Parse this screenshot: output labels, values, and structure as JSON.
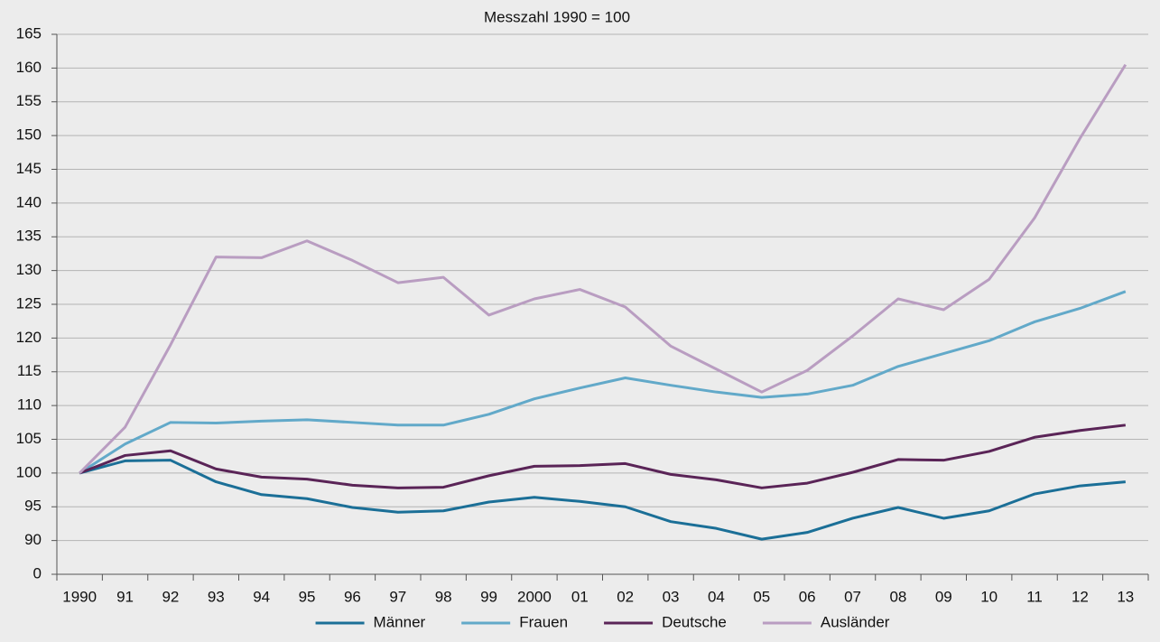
{
  "chart_data": {
    "type": "line",
    "title": "Messzahl 1990 = 100",
    "categories": [
      "1990",
      "91",
      "92",
      "93",
      "94",
      "95",
      "96",
      "97",
      "98",
      "99",
      "2000",
      "01",
      "02",
      "03",
      "04",
      "05",
      "06",
      "07",
      "08",
      "09",
      "10",
      "11",
      "12",
      "13"
    ],
    "series": [
      {
        "name": "Männer",
        "color": "#1b6f97",
        "values": [
          100,
          101.8,
          101.9,
          98.7,
          96.8,
          96.2,
          94.9,
          94.2,
          94.4,
          95.7,
          96.4,
          95.8,
          95.0,
          92.8,
          91.8,
          90.2,
          91.2,
          93.3,
          94.9,
          93.3,
          94.4,
          96.9,
          98.1,
          98.7
        ]
      },
      {
        "name": "Frauen",
        "color": "#62a9c9",
        "values": [
          100,
          104.3,
          107.5,
          107.4,
          107.7,
          107.9,
          107.5,
          107.1,
          107.1,
          108.7,
          111.0,
          112.6,
          114.1,
          113.0,
          112.0,
          111.2,
          111.7,
          113.0,
          115.8,
          117.7,
          119.6,
          122.4,
          124.4,
          126.9
        ]
      },
      {
        "name": "Deutsche",
        "color": "#5a2457",
        "values": [
          100,
          102.6,
          103.3,
          100.6,
          99.4,
          99.1,
          98.2,
          97.8,
          97.9,
          99.6,
          101.0,
          101.1,
          101.4,
          99.8,
          99.0,
          97.8,
          98.5,
          100.1,
          102.0,
          101.9,
          103.2,
          105.3,
          106.3,
          107.1
        ]
      },
      {
        "name": "Ausländer",
        "color": "#b99dc1",
        "values": [
          100,
          106.8,
          119.0,
          132.0,
          131.9,
          134.4,
          131.5,
          128.2,
          129.0,
          123.4,
          125.8,
          127.2,
          124.6,
          118.8,
          115.4,
          112.0,
          115.2,
          120.3,
          125.8,
          124.2,
          128.7,
          137.8,
          149.6,
          160.5
        ]
      }
    ],
    "ylim": [
      0,
      165
    ],
    "axis_break": [
      0,
      85
    ],
    "yticks": [
      0,
      90,
      95,
      100,
      105,
      110,
      115,
      120,
      125,
      130,
      135,
      140,
      145,
      150,
      155,
      160,
      165
    ],
    "grid": true,
    "legend": "bottom"
  }
}
